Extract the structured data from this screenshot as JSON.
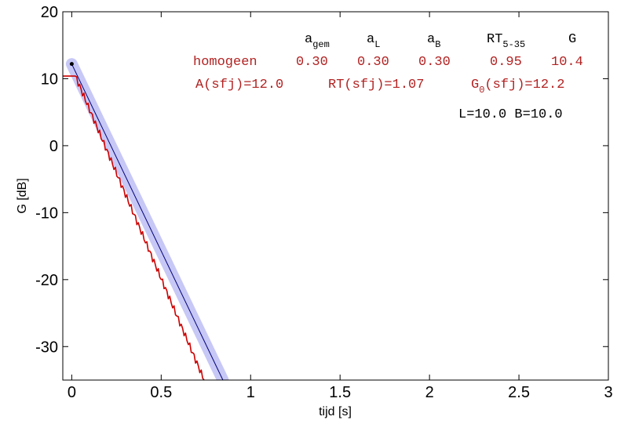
{
  "chart_data": {
    "type": "line",
    "xlabel": "tijd  [s]",
    "ylabel": "G  [dB]",
    "xlim": [
      -0.05,
      3
    ],
    "ylim": [
      -35,
      20
    ],
    "x_ticks": [
      "0",
      "0.5",
      "1",
      "1.5",
      "2",
      "2.5",
      "3"
    ],
    "y_ticks": [
      "20",
      "10",
      "0",
      "-10",
      "-20",
      "-30"
    ],
    "grid": false,
    "series": [
      {
        "kind": "fit_band",
        "color": "#c8c8f6",
        "x": [
          0,
          0.845
        ],
        "y": [
          12.2,
          -35
        ]
      },
      {
        "kind": "fit_line",
        "color": "#00007a",
        "x": [
          0,
          0.845
        ],
        "y": [
          12.2,
          -35
        ]
      },
      {
        "kind": "decay",
        "color": "#cc0000",
        "x": [
          -0.05,
          0.02,
          0.74
        ],
        "y": [
          10.4,
          10.4,
          -35
        ]
      }
    ],
    "marker": {
      "x": 0,
      "y": 12.2,
      "color": "#000000"
    },
    "annotations": {
      "header": {
        "agem_base": "a",
        "agem_sub": "gem",
        "aL_base": "a",
        "aL_sub": "L",
        "aB_base": "a",
        "aB_sub": "B",
        "RT_base": "RT",
        "RT_sub": "5-35",
        "G": "G",
        "color": "#000000"
      },
      "row1": {
        "label": "homogeen",
        "agem": "0.30",
        "aL": "0.30",
        "aB": "0.30",
        "RT": "0.95",
        "G": "10.4",
        "color": "#b22222"
      },
      "row2": {
        "A": "A(sfj)=12.0",
        "RT": "RT(sfj)=1.07",
        "G0_base": "G",
        "G0_sub": "0",
        "G0_rest": "(sfj)=12.2",
        "color": "#b22222"
      },
      "row3": {
        "text": "L=10.0 B=10.0",
        "color": "#000000"
      }
    }
  }
}
